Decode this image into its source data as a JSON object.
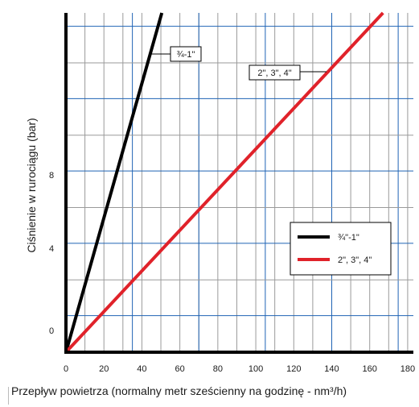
{
  "chart_data": {
    "type": "line",
    "xlabel": "Przepływ powietrza (normalny metr sześcienny na godzinę - nm³/h)",
    "ylabel": "Ciśnienie w rurociągu (bar)",
    "x_ticks": [
      "0",
      "20",
      "40",
      "60",
      "80",
      "100",
      "120",
      "140",
      "160",
      "180"
    ],
    "y_ticks": [
      {
        "value": 0,
        "label": "0"
      },
      {
        "value": 4,
        "label": "4"
      },
      {
        "value": 8,
        "label": "8"
      }
    ],
    "xlim": [
      0,
      183
    ],
    "ylim": [
      0,
      19
    ],
    "series": [
      {
        "name": "¾\"-1\"",
        "color": "#000000",
        "x": [
          0,
          50.5
        ],
        "y": [
          0,
          19
        ]
      },
      {
        "name": "2\", 3\", 4\"",
        "color": "#e0222a",
        "x": [
          0,
          167
        ],
        "y": [
          0,
          19
        ]
      }
    ],
    "line_labels": [
      "¾-1\"",
      "2\", 3\", 4\""
    ],
    "legend": {
      "position": "right",
      "entries": [
        {
          "label": "¾\"-1\"",
          "color": "#000000"
        },
        {
          "label": "2\", 3\", 4\"",
          "color": "#e0222a"
        }
      ]
    },
    "grid": true,
    "grid_colors": {
      "major": "#1f63b5",
      "minor": "#9a9a9a"
    }
  }
}
